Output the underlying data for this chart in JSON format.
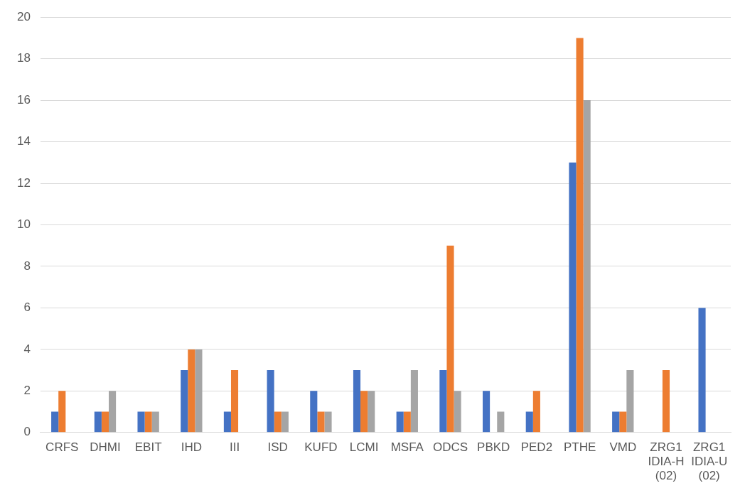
{
  "chart_data": {
    "type": "bar",
    "categories": [
      "CRFS",
      "DHMI",
      "EBIT",
      "IHD",
      "III",
      "ISD",
      "KUFD",
      "LCMI",
      "MSFA",
      "ODCS",
      "PBKD",
      "PED2",
      "PTHE",
      "VMD",
      "ZRG1 IDIA-H (02)",
      "ZRG1 IDIA-U (02)"
    ],
    "series": [
      {
        "color": "#4472c4",
        "values": [
          1,
          1,
          1,
          3,
          1,
          3,
          2,
          3,
          1,
          3,
          2,
          1,
          13,
          1,
          0,
          6
        ]
      },
      {
        "color": "#ed7d31",
        "values": [
          2,
          1,
          1,
          4,
          3,
          1,
          1,
          2,
          1,
          9,
          0,
          2,
          19,
          1,
          3,
          0
        ]
      },
      {
        "color": "#a5a5a5",
        "values": [
          0,
          2,
          1,
          4,
          0,
          1,
          1,
          2,
          3,
          2,
          1,
          0,
          16,
          3,
          0,
          0
        ]
      }
    ],
    "ylim": [
      0,
      20
    ],
    "yticks": [
      0,
      2,
      4,
      6,
      8,
      10,
      12,
      14,
      16,
      18,
      20
    ],
    "grid": "y",
    "legend": false
  }
}
